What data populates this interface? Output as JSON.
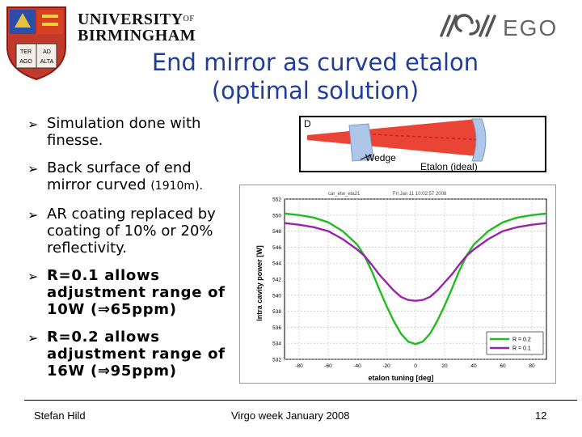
{
  "header": {
    "university_line1": "UNIVERSITY",
    "university_of": "OF",
    "university_line2": "BIRMINGHAM",
    "crest_text": [
      "TER",
      "AD",
      "AGO",
      "ALTA"
    ],
    "ego_text": "EGO"
  },
  "title": {
    "line1": "End mirror as curved etalon",
    "line2": "(optimal solution)"
  },
  "bullets": {
    "b1": "Simulation done with finesse.",
    "b2_main": "Back surface of end mirror curved ",
    "b2_small": "(1910m).",
    "b3": "AR coating replaced by coating of 10% or 20% reflectivity.",
    "b4": "R=0.1 allows adjustment range of 10W (⇒65ppm)",
    "b5": "R=0.2 allows adjustment range of 16W (⇒95ppm)"
  },
  "diagram": {
    "label_d": "D",
    "label_wedge": "Wedge",
    "label_etalon": "Etalon (ideal)"
  },
  "chart_data": {
    "type": "line",
    "header_left": "car_etw_eta21",
    "header_right": "Fri Jan 11 10:02:57 2008",
    "xlabel": "etalon tuning [deg]",
    "ylabel": "Intra cavity power [W]",
    "xlim": [
      -90,
      90
    ],
    "ylim": [
      532,
      552
    ],
    "xticks": [
      -80,
      -60,
      -40,
      -20,
      0,
      20,
      40,
      60,
      80
    ],
    "yticks": [
      532,
      534,
      536,
      538,
      540,
      542,
      544,
      546,
      548,
      550,
      552
    ],
    "grid": true,
    "legend_position": "bottom-right",
    "x": [
      -90,
      -80,
      -70,
      -60,
      -50,
      -40,
      -35,
      -30,
      -25,
      -20,
      -15,
      -10,
      -5,
      0,
      5,
      10,
      15,
      20,
      25,
      30,
      35,
      40,
      50,
      60,
      70,
      80,
      90
    ],
    "series": [
      {
        "name": "R = 0.2",
        "color": "#22bb22",
        "values": [
          550.2,
          550.0,
          549.7,
          549.1,
          548.0,
          546.3,
          544.9,
          543.0,
          540.8,
          538.7,
          536.8,
          535.2,
          534.2,
          533.9,
          534.2,
          535.2,
          536.8,
          538.7,
          540.8,
          543.0,
          544.9,
          546.3,
          548.0,
          549.1,
          549.7,
          550.0,
          550.2
        ]
      },
      {
        "name": "R = 0.1",
        "color": "#9922aa",
        "values": [
          549.0,
          548.8,
          548.5,
          548.0,
          547.0,
          545.7,
          544.9,
          543.8,
          542.6,
          541.6,
          540.6,
          539.8,
          539.4,
          539.3,
          539.4,
          539.8,
          540.6,
          541.6,
          542.6,
          543.8,
          544.9,
          545.7,
          547.0,
          548.0,
          548.5,
          548.8,
          549.0
        ]
      }
    ]
  },
  "footer": {
    "author": "Stefan Hild",
    "event": "Virgo week January 2008",
    "page": "12"
  }
}
